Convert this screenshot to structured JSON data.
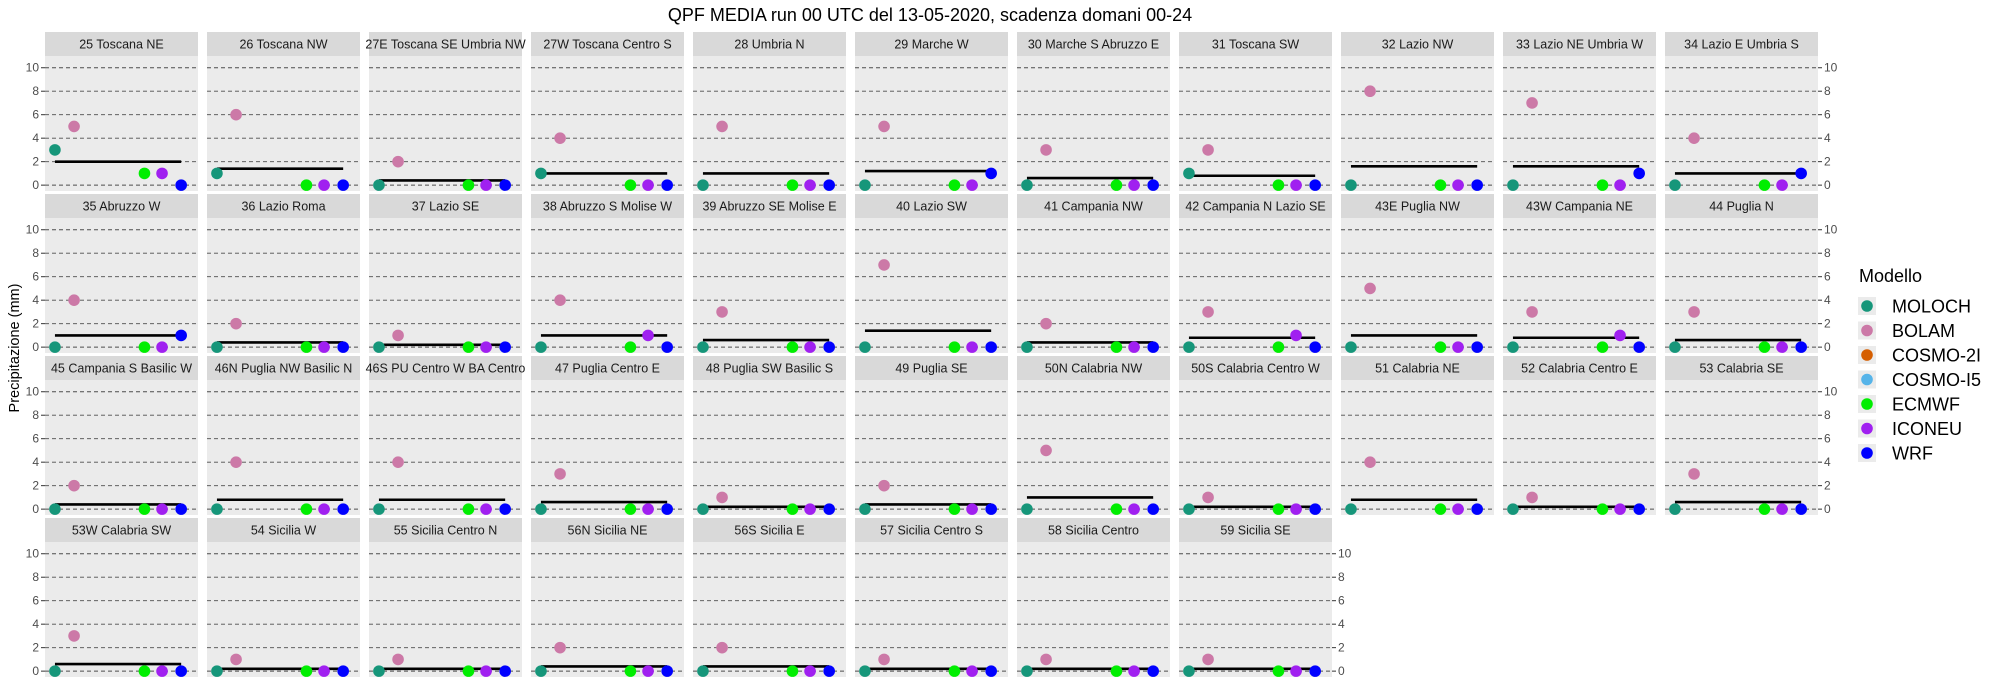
{
  "chart_data": {
    "type": "scatter",
    "title": "QPF MEDIA run 00 UTC del 13-05-2020, scadenza domani 00-24",
    "xlabel": "",
    "ylabel": "Precipitazione  (mm)",
    "ylim": [
      -0.5,
      11
    ],
    "yticks": [
      0,
      2,
      4,
      6,
      8,
      10
    ],
    "grid": true,
    "legend_title": "Modello",
    "legend_position": "right",
    "series": [
      {
        "name": "MOLOCH",
        "color": "#16967a"
      },
      {
        "name": "BOLAM",
        "color": "#cc79a7"
      },
      {
        "name": "COSMO-2I",
        "color": "#d55e00"
      },
      {
        "name": "COSMO-I5",
        "color": "#56b4e9"
      },
      {
        "name": "ECMWF",
        "color": "#00ee00"
      },
      {
        "name": "ICONEU",
        "color": "#a020f0"
      },
      {
        "name": "WRF",
        "color": "#0000ff"
      }
    ],
    "panels": [
      {
        "name": "25 Toscana NE",
        "mean": 2.0,
        "values": {
          "MOLOCH": 3,
          "BOLAM": 5,
          "ECMWF": 1,
          "ICONEU": 1,
          "WRF": 0
        }
      },
      {
        "name": "26 Toscana NW",
        "mean": 1.4,
        "values": {
          "MOLOCH": 1,
          "BOLAM": 6,
          "ECMWF": 0,
          "ICONEU": 0,
          "WRF": 0
        }
      },
      {
        "name": "27E Toscana SE Umbria NW",
        "mean": 0.4,
        "values": {
          "MOLOCH": 0,
          "BOLAM": 2,
          "ECMWF": 0,
          "ICONEU": 0,
          "WRF": 0
        }
      },
      {
        "name": "27W Toscana Centro S",
        "mean": 1.0,
        "values": {
          "MOLOCH": 1,
          "BOLAM": 4,
          "ECMWF": 0,
          "ICONEU": 0,
          "WRF": 0
        }
      },
      {
        "name": "28 Umbria N",
        "mean": 1.0,
        "values": {
          "MOLOCH": 0,
          "BOLAM": 5,
          "ECMWF": 0,
          "ICONEU": 0,
          "WRF": 0
        }
      },
      {
        "name": "29 Marche W",
        "mean": 1.2,
        "values": {
          "MOLOCH": 0,
          "BOLAM": 5,
          "ECMWF": 0,
          "ICONEU": 0,
          "WRF": 1
        }
      },
      {
        "name": "30 Marche S Abruzzo E",
        "mean": 0.6,
        "values": {
          "MOLOCH": 0,
          "BOLAM": 3,
          "ECMWF": 0,
          "ICONEU": 0,
          "WRF": 0
        }
      },
      {
        "name": "31 Toscana SW",
        "mean": 0.8,
        "values": {
          "MOLOCH": 1,
          "BOLAM": 3,
          "ECMWF": 0,
          "ICONEU": 0,
          "WRF": 0
        }
      },
      {
        "name": "32 Lazio NW",
        "mean": 1.6,
        "values": {
          "MOLOCH": 0,
          "BOLAM": 8,
          "ECMWF": 0,
          "ICONEU": 0,
          "WRF": 0
        }
      },
      {
        "name": "33 Lazio NE Umbria W",
        "mean": 1.6,
        "values": {
          "MOLOCH": 0,
          "BOLAM": 7,
          "ECMWF": 0,
          "ICONEU": 0,
          "WRF": 1
        }
      },
      {
        "name": "34 Lazio E Umbria S",
        "mean": 1.0,
        "values": {
          "MOLOCH": 0,
          "BOLAM": 4,
          "ECMWF": 0,
          "ICONEU": 0,
          "WRF": 1
        }
      },
      {
        "name": "35 Abruzzo W",
        "mean": 1.0,
        "values": {
          "MOLOCH": 0,
          "BOLAM": 4,
          "ECMWF": 0,
          "ICONEU": 0,
          "WRF": 1
        }
      },
      {
        "name": "36 Lazio Roma",
        "mean": 0.4,
        "values": {
          "MOLOCH": 0,
          "BOLAM": 2,
          "ECMWF": 0,
          "ICONEU": 0,
          "WRF": 0
        }
      },
      {
        "name": "37 Lazio SE",
        "mean": 0.2,
        "values": {
          "MOLOCH": 0,
          "BOLAM": 1,
          "ECMWF": 0,
          "ICONEU": 0,
          "WRF": 0
        }
      },
      {
        "name": "38 Abruzzo S Molise W",
        "mean": 1.0,
        "values": {
          "MOLOCH": 0,
          "BOLAM": 4,
          "ECMWF": 0,
          "ICONEU": 1,
          "WRF": 0
        }
      },
      {
        "name": "39 Abruzzo SE Molise E",
        "mean": 0.6,
        "values": {
          "MOLOCH": 0,
          "BOLAM": 3,
          "ECMWF": 0,
          "ICONEU": 0,
          "WRF": 0
        }
      },
      {
        "name": "40 Lazio SW",
        "mean": 1.4,
        "values": {
          "MOLOCH": 0,
          "BOLAM": 7,
          "ECMWF": 0,
          "ICONEU": 0,
          "WRF": 0
        }
      },
      {
        "name": "41 Campania NW",
        "mean": 0.4,
        "values": {
          "MOLOCH": 0,
          "BOLAM": 2,
          "ECMWF": 0,
          "ICONEU": 0,
          "WRF": 0
        }
      },
      {
        "name": "42 Campania N Lazio SE",
        "mean": 0.8,
        "values": {
          "MOLOCH": 0,
          "BOLAM": 3,
          "ECMWF": 0,
          "ICONEU": 1,
          "WRF": 0
        }
      },
      {
        "name": "43E Puglia NW",
        "mean": 1.0,
        "values": {
          "MOLOCH": 0,
          "BOLAM": 5,
          "ECMWF": 0,
          "ICONEU": 0,
          "WRF": 0
        }
      },
      {
        "name": "43W Campania NE",
        "mean": 0.8,
        "values": {
          "MOLOCH": 0,
          "BOLAM": 3,
          "ECMWF": 0,
          "ICONEU": 1,
          "WRF": 0
        }
      },
      {
        "name": "44 Puglia N",
        "mean": 0.6,
        "values": {
          "MOLOCH": 0,
          "BOLAM": 3,
          "ECMWF": 0,
          "ICONEU": 0,
          "WRF": 0
        }
      },
      {
        "name": "45 Campania S Basilic W",
        "mean": 0.4,
        "values": {
          "MOLOCH": 0,
          "BOLAM": 2,
          "ECMWF": 0,
          "ICONEU": 0,
          "WRF": 0
        }
      },
      {
        "name": "46N Puglia NW Basilic N",
        "mean": 0.8,
        "values": {
          "MOLOCH": 0,
          "BOLAM": 4,
          "ECMWF": 0,
          "ICONEU": 0,
          "WRF": 0
        }
      },
      {
        "name": "46S PU Centro W BA Centro",
        "mean": 0.8,
        "values": {
          "MOLOCH": 0,
          "BOLAM": 4,
          "ECMWF": 0,
          "ICONEU": 0,
          "WRF": 0
        }
      },
      {
        "name": "47 Puglia Centro E",
        "mean": 0.6,
        "values": {
          "MOLOCH": 0,
          "BOLAM": 3,
          "ECMWF": 0,
          "ICONEU": 0,
          "WRF": 0
        }
      },
      {
        "name": "48 Puglia SW Basilic S",
        "mean": 0.2,
        "values": {
          "MOLOCH": 0,
          "BOLAM": 1,
          "ECMWF": 0,
          "ICONEU": 0,
          "WRF": 0
        }
      },
      {
        "name": "49 Puglia SE",
        "mean": 0.4,
        "values": {
          "MOLOCH": 0,
          "BOLAM": 2,
          "ECMWF": 0,
          "ICONEU": 0,
          "WRF": 0
        }
      },
      {
        "name": "50N Calabria NW",
        "mean": 1.0,
        "values": {
          "MOLOCH": 0,
          "BOLAM": 5,
          "ECMWF": 0,
          "ICONEU": 0,
          "WRF": 0
        }
      },
      {
        "name": "50S Calabria Centro W",
        "mean": 0.2,
        "values": {
          "MOLOCH": 0,
          "BOLAM": 1,
          "ECMWF": 0,
          "ICONEU": 0,
          "WRF": 0
        }
      },
      {
        "name": "51 Calabria NE",
        "mean": 0.8,
        "values": {
          "MOLOCH": 0,
          "BOLAM": 4,
          "ECMWF": 0,
          "ICONEU": 0,
          "WRF": 0
        }
      },
      {
        "name": "52 Calabria Centro E",
        "mean": 0.2,
        "values": {
          "MOLOCH": 0,
          "BOLAM": 1,
          "ECMWF": 0,
          "ICONEU": 0,
          "WRF": 0
        }
      },
      {
        "name": "53 Calabria SE",
        "mean": 0.6,
        "values": {
          "MOLOCH": 0,
          "BOLAM": 3,
          "ECMWF": 0,
          "ICONEU": 0,
          "WRF": 0
        }
      },
      {
        "name": "53W Calabria SW",
        "mean": 0.6,
        "values": {
          "MOLOCH": 0,
          "BOLAM": 3,
          "ECMWF": 0,
          "ICONEU": 0,
          "WRF": 0
        }
      },
      {
        "name": "54 Sicilia W",
        "mean": 0.2,
        "values": {
          "MOLOCH": 0,
          "BOLAM": 1,
          "ECMWF": 0,
          "ICONEU": 0,
          "WRF": 0
        }
      },
      {
        "name": "55 Sicilia Centro N",
        "mean": 0.2,
        "values": {
          "MOLOCH": 0,
          "BOLAM": 1,
          "ECMWF": 0,
          "ICONEU": 0,
          "WRF": 0
        }
      },
      {
        "name": "56N Sicilia NE",
        "mean": 0.4,
        "values": {
          "MOLOCH": 0,
          "BOLAM": 2,
          "ECMWF": 0,
          "ICONEU": 0,
          "WRF": 0
        }
      },
      {
        "name": "56S Sicilia E",
        "mean": 0.4,
        "values": {
          "MOLOCH": 0,
          "BOLAM": 2,
          "ECMWF": 0,
          "ICONEU": 0,
          "WRF": 0
        }
      },
      {
        "name": "57 Sicilia Centro S",
        "mean": 0.2,
        "values": {
          "MOLOCH": 0,
          "BOLAM": 1,
          "ECMWF": 0,
          "ICONEU": 0,
          "WRF": 0
        }
      },
      {
        "name": "58 Sicilia Centro",
        "mean": 0.2,
        "values": {
          "MOLOCH": 0,
          "BOLAM": 1,
          "ECMWF": 0,
          "ICONEU": 0,
          "WRF": 0
        }
      },
      {
        "name": "59 Sicilia SE",
        "mean": 0.2,
        "values": {
          "MOLOCH": 0,
          "BOLAM": 1,
          "ECMWF": 0,
          "ICONEU": 0,
          "WRF": 0
        }
      }
    ]
  }
}
